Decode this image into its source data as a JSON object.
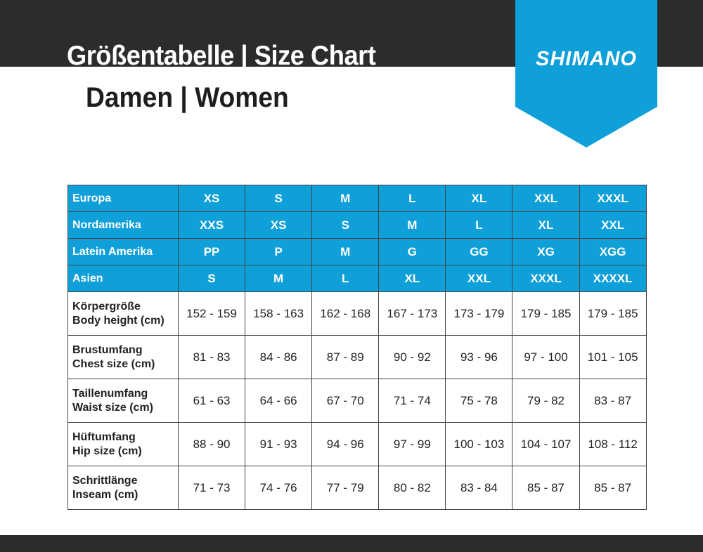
{
  "header": {
    "title": "Größentabelle | Size Chart",
    "subtitle": "Damen | Women",
    "logo": "SHIMANO",
    "colors": {
      "dark": "#2d2c2c",
      "blue": "#0f9fd9"
    }
  },
  "size_rows": [
    {
      "label": "Europa",
      "values": [
        "XS",
        "S",
        "M",
        "L",
        "XL",
        "XXL",
        "XXXL"
      ]
    },
    {
      "label": "Nordamerika",
      "values": [
        "XXS",
        "XS",
        "S",
        "M",
        "L",
        "XL",
        "XXL"
      ]
    },
    {
      "label": "Latein Amerika",
      "values": [
        "PP",
        "P",
        "M",
        "G",
        "GG",
        "XG",
        "XGG"
      ]
    },
    {
      "label": "Asien",
      "values": [
        "S",
        "M",
        "L",
        "XL",
        "XXL",
        "XXXL",
        "XXXXL"
      ]
    }
  ],
  "measure_rows": [
    {
      "label_de": "Körpergröße",
      "label_en": "Body height (cm)",
      "values": [
        "152 - 159",
        "158 - 163",
        "162 - 168",
        "167 - 173",
        "173 - 179",
        "179 - 185",
        "179 - 185"
      ]
    },
    {
      "label_de": "Brustumfang",
      "label_en": "Chest size (cm)",
      "values": [
        "81 - 83",
        "84 - 86",
        "87 - 89",
        "90 - 92",
        "93 - 96",
        "97 - 100",
        "101 - 105"
      ]
    },
    {
      "label_de": "Taillenumfang",
      "label_en": "Waist size (cm)",
      "values": [
        "61 - 63",
        "64 - 66",
        "67 - 70",
        "71 - 74",
        "75 - 78",
        "79 - 82",
        "83 - 87"
      ]
    },
    {
      "label_de": "Hüftumfang",
      "label_en": "Hip size (cm)",
      "values": [
        "88 - 90",
        "91 - 93",
        "94 - 96",
        "97 - 99",
        "100 - 103",
        "104 - 107",
        "108 - 112"
      ]
    },
    {
      "label_de": "Schrittlänge",
      "label_en": "Inseam (cm)",
      "values": [
        "71 - 73",
        "74 - 76",
        "77 - 79",
        "80 - 82",
        "83 - 84",
        "85 - 87",
        "85 - 87"
      ]
    }
  ]
}
